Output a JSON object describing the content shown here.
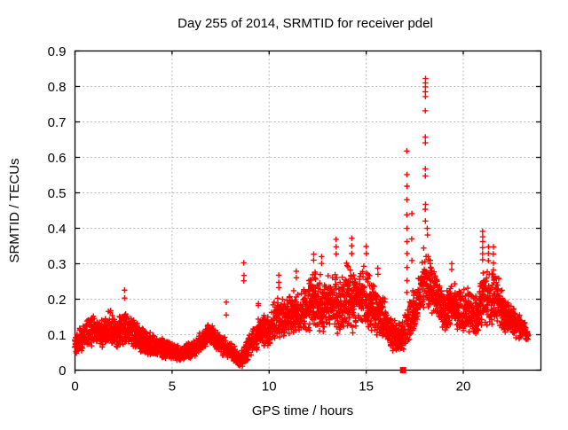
{
  "chart_data": {
    "type": "scatter",
    "title": "Day 255 of 2014, SRMTID for receiver pdel",
    "xlabel": "GPS time / hours",
    "ylabel": "SRMTID / TECUs",
    "xlim": [
      0,
      24
    ],
    "ylim": [
      0,
      0.9
    ],
    "xticks": {
      "values": [
        0,
        5,
        10,
        15,
        20
      ],
      "labels": [
        "0",
        "5",
        "10",
        "15",
        "20"
      ]
    },
    "yticks": {
      "values": [
        0,
        0.1,
        0.2,
        0.3,
        0.4,
        0.5,
        0.6,
        0.7,
        0.8,
        0.9
      ],
      "labels": [
        "0",
        "0.1",
        "0.2",
        "0.3",
        "0.4",
        "0.5",
        "0.6",
        "0.7",
        "0.8",
        "0.9"
      ]
    },
    "grid": {
      "enabled": true,
      "color": "#b0b0b0",
      "style": "dotted"
    },
    "legend": "none",
    "axis_color": "#000000",
    "series": [
      {
        "name": "srmtid-scatter",
        "marker": "plus",
        "color": "#ff0000",
        "sampling_step_hours": 0.02,
        "x_start": 0.0,
        "x_end": 23.35,
        "band_envelope": [
          [
            0.0,
            0.04,
            0.11
          ],
          [
            0.35,
            0.05,
            0.13
          ],
          [
            0.75,
            0.06,
            0.16
          ],
          [
            1.1,
            0.07,
            0.17
          ],
          [
            1.45,
            0.06,
            0.14
          ],
          [
            1.8,
            0.07,
            0.18
          ],
          [
            2.1,
            0.06,
            0.14
          ],
          [
            2.45,
            0.07,
            0.18
          ],
          [
            2.75,
            0.07,
            0.16
          ],
          [
            3.05,
            0.06,
            0.16
          ],
          [
            3.4,
            0.05,
            0.13
          ],
          [
            3.8,
            0.04,
            0.11
          ],
          [
            4.2,
            0.04,
            0.1
          ],
          [
            4.6,
            0.03,
            0.09
          ],
          [
            5.0,
            0.03,
            0.08
          ],
          [
            5.5,
            0.025,
            0.07
          ],
          [
            6.0,
            0.03,
            0.08
          ],
          [
            6.5,
            0.05,
            0.11
          ],
          [
            6.9,
            0.07,
            0.14
          ],
          [
            7.25,
            0.06,
            0.12
          ],
          [
            7.6,
            0.04,
            0.1
          ],
          [
            8.0,
            0.03,
            0.08
          ],
          [
            8.5,
            0.005,
            0.05
          ],
          [
            8.85,
            0.02,
            0.09
          ],
          [
            9.2,
            0.05,
            0.13
          ],
          [
            9.6,
            0.06,
            0.16
          ],
          [
            10.0,
            0.07,
            0.17
          ],
          [
            10.4,
            0.08,
            0.21
          ],
          [
            10.8,
            0.09,
            0.2
          ],
          [
            11.2,
            0.1,
            0.24
          ],
          [
            11.6,
            0.1,
            0.22
          ],
          [
            12.0,
            0.1,
            0.26
          ],
          [
            12.4,
            0.11,
            0.3
          ],
          [
            12.8,
            0.1,
            0.26
          ],
          [
            13.2,
            0.11,
            0.3
          ],
          [
            13.6,
            0.1,
            0.27
          ],
          [
            14.0,
            0.11,
            0.31
          ],
          [
            14.4,
            0.1,
            0.3
          ],
          [
            14.8,
            0.11,
            0.32
          ],
          [
            15.2,
            0.1,
            0.27
          ],
          [
            15.6,
            0.09,
            0.24
          ],
          [
            16.0,
            0.07,
            0.2
          ],
          [
            16.4,
            0.05,
            0.15
          ],
          [
            16.8,
            0.05,
            0.13
          ],
          [
            17.2,
            0.08,
            0.2
          ],
          [
            17.6,
            0.12,
            0.26
          ],
          [
            18.0,
            0.17,
            0.37
          ],
          [
            18.3,
            0.16,
            0.33
          ],
          [
            18.7,
            0.13,
            0.26
          ],
          [
            19.1,
            0.11,
            0.23
          ],
          [
            19.5,
            0.12,
            0.27
          ],
          [
            19.9,
            0.1,
            0.23
          ],
          [
            20.3,
            0.1,
            0.24
          ],
          [
            20.7,
            0.1,
            0.21
          ],
          [
            21.0,
            0.13,
            0.3
          ],
          [
            21.4,
            0.12,
            0.28
          ],
          [
            21.7,
            0.13,
            0.3
          ],
          [
            22.1,
            0.1,
            0.22
          ],
          [
            22.5,
            0.1,
            0.19
          ],
          [
            22.9,
            0.08,
            0.17
          ],
          [
            23.2,
            0.08,
            0.14
          ],
          [
            23.35,
            0.08,
            0.12
          ]
        ],
        "spike_columns": [
          {
            "x": 2.55,
            "y": [
              0.205,
              0.225
            ]
          },
          {
            "x": 7.8,
            "y": [
              0.155,
              0.19
            ]
          },
          {
            "x": 8.7,
            "y": [
              0.25,
              0.265,
              0.3
            ]
          },
          {
            "x": 9.45,
            "y": [
              0.18,
              0.19
            ]
          },
          {
            "x": 10.5,
            "y": [
              0.23,
              0.25,
              0.27
            ]
          },
          {
            "x": 11.4,
            "y": [
              0.26,
              0.28
            ]
          },
          {
            "x": 12.3,
            "y": [
              0.31,
              0.33
            ]
          },
          {
            "x": 12.7,
            "y": [
              0.3,
              0.32
            ]
          },
          {
            "x": 13.45,
            "y": [
              0.33,
              0.35,
              0.37
            ]
          },
          {
            "x": 14.25,
            "y": [
              0.33,
              0.35,
              0.37
            ]
          },
          {
            "x": 15.0,
            "y": [
              0.33,
              0.35
            ]
          },
          {
            "x": 15.6,
            "y": [
              0.27,
              0.29
            ]
          },
          {
            "x": 17.1,
            "y": [
              0.22,
              0.25,
              0.29,
              0.33,
              0.36,
              0.4,
              0.44,
              0.48,
              0.52,
              0.55,
              0.62
            ]
          },
          {
            "x": 17.35,
            "y": [
              0.31,
              0.37,
              0.44
            ]
          },
          {
            "x": 18.05,
            "y": [
              0.42,
              0.455,
              0.47,
              0.55,
              0.57,
              0.64,
              0.655,
              0.73,
              0.77,
              0.785,
              0.8,
              0.81,
              0.825
            ]
          },
          {
            "x": 18.15,
            "y": [
              0.38,
              0.4
            ]
          },
          {
            "x": 19.4,
            "y": [
              0.285,
              0.3
            ]
          },
          {
            "x": 21.0,
            "y": [
              0.31,
              0.33,
              0.345,
              0.36,
              0.375,
              0.39
            ]
          },
          {
            "x": 21.3,
            "y": [
              0.31,
              0.33,
              0.35
            ]
          },
          {
            "x": 21.55,
            "y": [
              0.26,
              0.28,
              0.3,
              0.325,
              0.35
            ]
          }
        ]
      },
      {
        "name": "flagged-point",
        "marker": "filled-square",
        "color": "#ff0000",
        "points": [
          [
            16.9,
            0
          ]
        ]
      }
    ]
  },
  "seed": 20140255
}
